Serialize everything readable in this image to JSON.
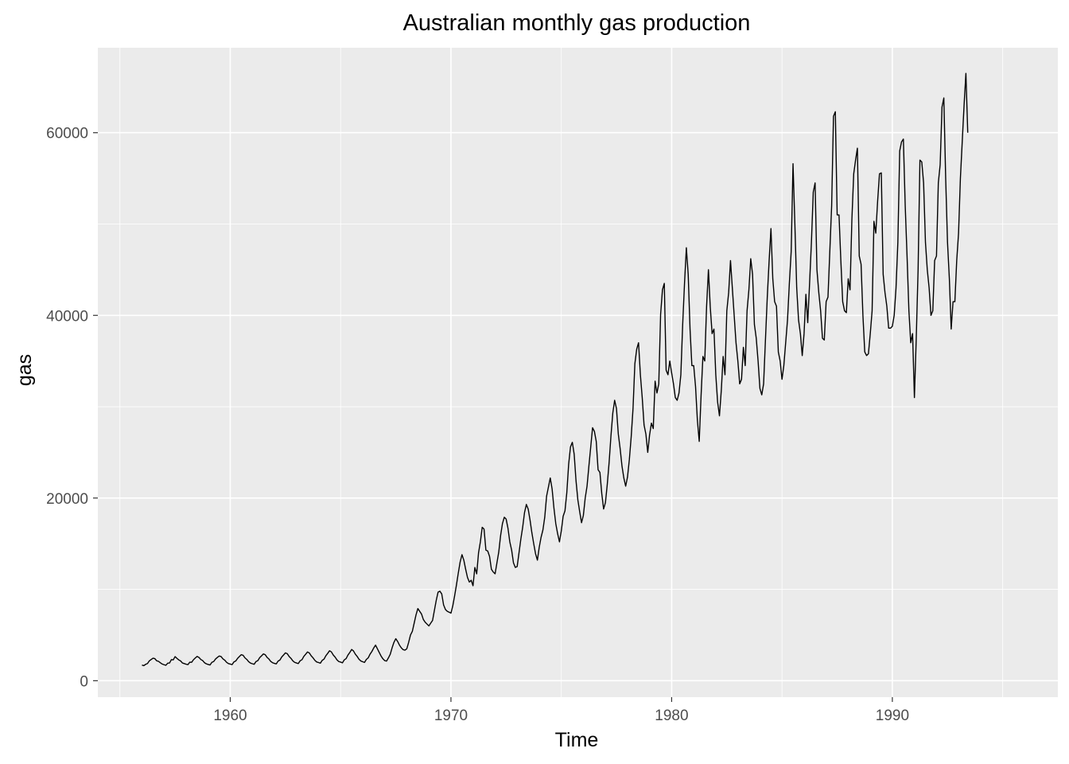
{
  "chart_data": {
    "type": "line",
    "title": "Australian monthly gas production",
    "xlabel": "Time",
    "ylabel": "gas",
    "xlim": [
      1954.0,
      1997.5
    ],
    "ylim": [
      -1800,
      69300
    ],
    "x_ticks": [
      1960,
      1970,
      1980,
      1990
    ],
    "x_tick_labels": [
      "1960",
      "1970",
      "1980",
      "1990"
    ],
    "y_ticks": [
      0,
      20000,
      40000,
      60000
    ],
    "y_tick_labels": [
      "0",
      "20000",
      "40000",
      "60000"
    ],
    "grid": true,
    "legend": "none",
    "colors": {
      "panel": "#ebebeb",
      "grid": "#ffffff",
      "line": "#000000",
      "tick_text": "#4d4d4d",
      "tick_mark": "#333333"
    },
    "series": [
      {
        "start": 1956.0,
        "frequency": 12,
        "values": [
          1709,
          1646,
          1794,
          1878,
          2173,
          2321,
          2468,
          2416,
          2184,
          2121,
          1962,
          1825,
          1751,
          1688,
          1920,
          1941,
          2311,
          2279,
          2638,
          2448,
          2279,
          2163,
          1941,
          1878,
          1804,
          1762,
          2024,
          2016,
          2295,
          2490,
          2658,
          2545,
          2321,
          2206,
          1970,
          1850,
          1780,
          1720,
          2010,
          2100,
          2380,
          2550,
          2700,
          2650,
          2400,
          2250,
          2020,
          1880,
          1820,
          1760,
          2060,
          2160,
          2450,
          2650,
          2850,
          2780,
          2500,
          2330,
          2080,
          1930,
          1860,
          1800,
          2100,
          2200,
          2520,
          2720,
          2930,
          2850,
          2560,
          2380,
          2120,
          1970,
          1900,
          1840,
          2140,
          2260,
          2600,
          2820,
          3050,
          2960,
          2650,
          2450,
          2180,
          2010,
          1940,
          1880,
          2180,
          2300,
          2660,
          2900,
          3150,
          3040,
          2730,
          2510,
          2230,
          2050,
          1990,
          1920,
          2230,
          2370,
          2740,
          3000,
          3280,
          3150,
          2820,
          2590,
          2290,
          2100,
          2040,
          1960,
          2280,
          2420,
          2810,
          3090,
          3420,
          3260,
          2910,
          2660,
          2350,
          2160,
          2080,
          2000,
          2330,
          2500,
          2900,
          3200,
          3580,
          3900,
          3500,
          3100,
          2700,
          2400,
          2200,
          2150,
          2500,
          2900,
          3600,
          4200,
          4600,
          4300,
          3900,
          3600,
          3400,
          3350,
          3500,
          4200,
          5000,
          5400,
          6300,
          7200,
          7900,
          7600,
          7300,
          6700,
          6400,
          6200,
          6000,
          6300,
          6600,
          7700,
          8800,
          9700,
          9800,
          9500,
          8300,
          7800,
          7600,
          7500,
          7400,
          8200,
          9300,
          10500,
          11800,
          13000,
          13800,
          13200,
          12200,
          11300,
          10800,
          11000,
          10400,
          12400,
          11700,
          14000,
          15200,
          16800,
          16600,
          14300,
          14200,
          13600,
          12200,
          11900,
          11700,
          12900,
          14100,
          15900,
          17200,
          17900,
          17700,
          16700,
          15200,
          14300,
          12900,
          12400,
          12500,
          14000,
          15500,
          16800,
          18400,
          19300,
          18800,
          17600,
          16200,
          15000,
          13900,
          13200,
          14600,
          15700,
          16500,
          17900,
          20200,
          21200,
          22200,
          21000,
          18900,
          17200,
          16100,
          15200,
          16400,
          18000,
          18600,
          20600,
          23700,
          25600,
          26100,
          24800,
          21900,
          19800,
          18500,
          17300,
          18100,
          20000,
          21300,
          23500,
          25600,
          27700,
          27300,
          26200,
          23100,
          22800,
          20500,
          18800,
          19500,
          21500,
          23900,
          26800,
          29300,
          30700,
          29800,
          27000,
          25400,
          23500,
          22200,
          21300,
          22300,
          24200,
          26700,
          29800,
          34700,
          36300,
          37000,
          33500,
          31000,
          28000,
          27000,
          25000,
          26900,
          28200,
          27600,
          32800,
          31500,
          32500,
          40100,
          42800,
          43500,
          34000,
          33500,
          35000,
          33700,
          32500,
          31000,
          30700,
          31500,
          33500,
          39000,
          43500,
          47400,
          44500,
          38500,
          34500,
          34500,
          32200,
          28500,
          26200,
          31200,
          35500,
          35000,
          41000,
          45000,
          40900,
          38000,
          38500,
          33500,
          30500,
          29000,
          31800,
          35500,
          33500,
          40500,
          42500,
          46000,
          43000,
          40000,
          37000,
          35000,
          32500,
          33000,
          36500,
          34500,
          40500,
          42800,
          46200,
          44500,
          39000,
          37500,
          35000,
          32000,
          31300,
          32500,
          37300,
          42000,
          46000,
          49500,
          44000,
          41500,
          41000,
          36000,
          35000,
          33000,
          34500,
          37000,
          39500,
          43500,
          47000,
          56600,
          50000,
          43000,
          39500,
          38000,
          35600,
          38000,
          42300,
          39200,
          43500,
          48000,
          53500,
          54500,
          45000,
          42500,
          40500,
          37500,
          37300,
          41500,
          42000,
          47000,
          52000,
          61800,
          62300,
          51000,
          51000,
          46000,
          41500,
          40500,
          40300,
          44000,
          42800,
          50500,
          55500,
          57000,
          58300,
          46500,
          45600,
          40000,
          36000,
          35600,
          35800,
          38000,
          40500,
          50300,
          49000,
          52500,
          55500,
          55600,
          44500,
          42500,
          41000,
          38600,
          38600,
          38800,
          40000,
          43000,
          48000,
          58000,
          59000,
          59300,
          52000,
          46500,
          40500,
          37000,
          38000,
          31000,
          37500,
          45000,
          57000,
          56800,
          54500,
          48000,
          45000,
          43000,
          40000,
          40500,
          46000,
          46500,
          54500,
          56500,
          62800,
          63800,
          55000,
          48000,
          44000,
          38500,
          41500,
          41500,
          46000,
          49000,
          55000,
          59000,
          63000,
          66500,
          60000
        ]
      }
    ]
  }
}
